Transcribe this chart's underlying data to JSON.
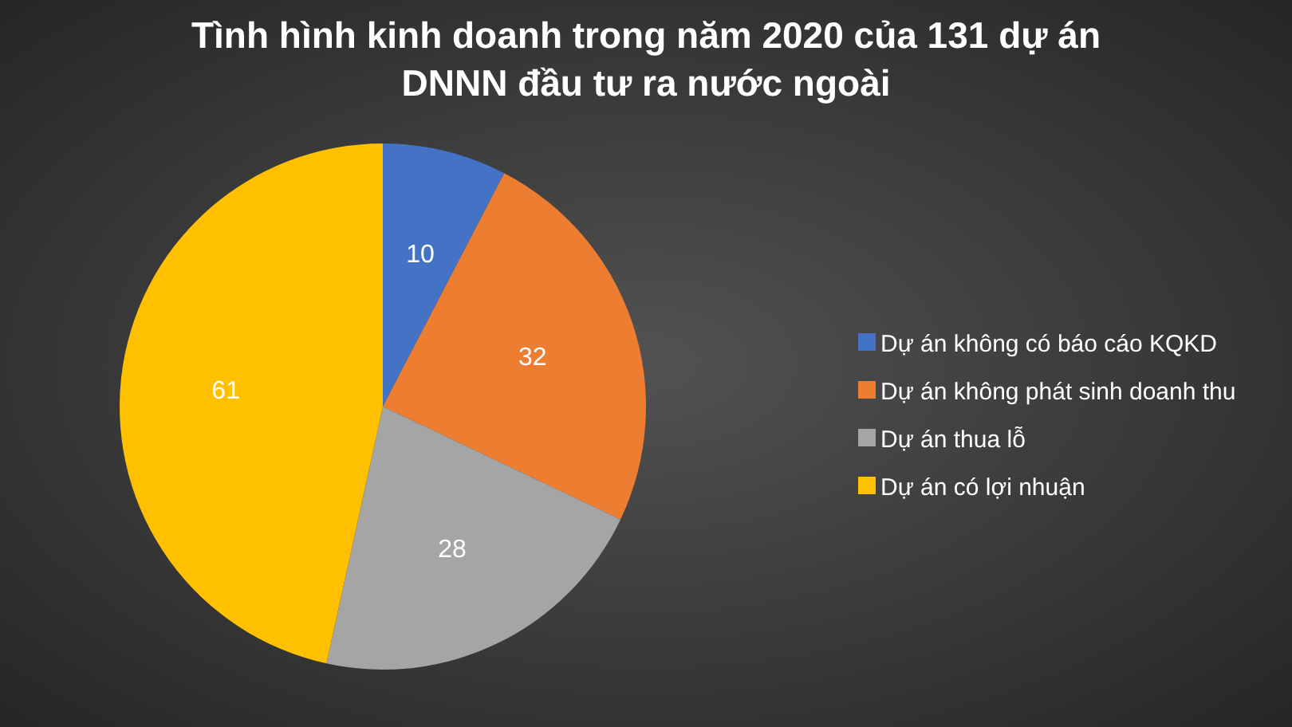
{
  "chart_data": {
    "type": "pie",
    "title": "Tình hình kinh doanh trong năm 2020 của 131 dự án\nDNNN đầu tư ra nước ngoài",
    "categories": [
      "Dự án không có báo cáo KQKD",
      "Dự án không phát sinh doanh thu",
      "Dự án thua lỗ",
      "Dự án có lợi nhuận"
    ],
    "values": [
      10,
      32,
      28,
      61
    ],
    "colors": [
      "#4472c4",
      "#ed7d31",
      "#a5a5a5",
      "#ffc000"
    ],
    "data_labels": true,
    "legend": "right"
  }
}
